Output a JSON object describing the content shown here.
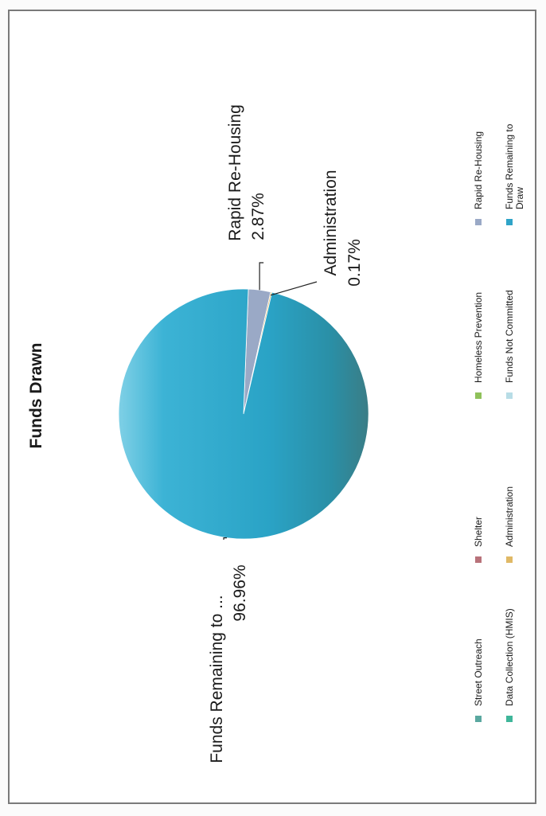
{
  "chart_data": {
    "type": "pie",
    "title": "Funds Drawn",
    "slices": [
      {
        "label": "Funds Remaining to ...",
        "value": 96.96,
        "value_label": "96.96%",
        "color": "#2fa4c8"
      },
      {
        "label": "Rapid Re-Housing",
        "value": 2.87,
        "value_label": "2.87%",
        "color": "#9aa9c6"
      },
      {
        "label": "Administration",
        "value": 0.17,
        "value_label": "0.17%",
        "color": "#e0b966"
      }
    ],
    "legend": {
      "placement": "bottom",
      "items": [
        {
          "label": "Street Outreach",
          "color": "#5aa8a0"
        },
        {
          "label": "Data Collection (HMIS)",
          "color": "#3fb69a"
        },
        {
          "label": "Shelter",
          "color": "#b8727a"
        },
        {
          "label": "Administration",
          "color": "#e0b966"
        },
        {
          "label": "Homeless Prevention",
          "color": "#8fc15a"
        },
        {
          "label": "Funds Not Committed",
          "color": "#b8dde6"
        },
        {
          "label": "Rapid Re-Housing",
          "color": "#9aa9c6"
        },
        {
          "label": "Funds Remaining to Draw",
          "color": "#2fa4c8"
        }
      ]
    }
  }
}
